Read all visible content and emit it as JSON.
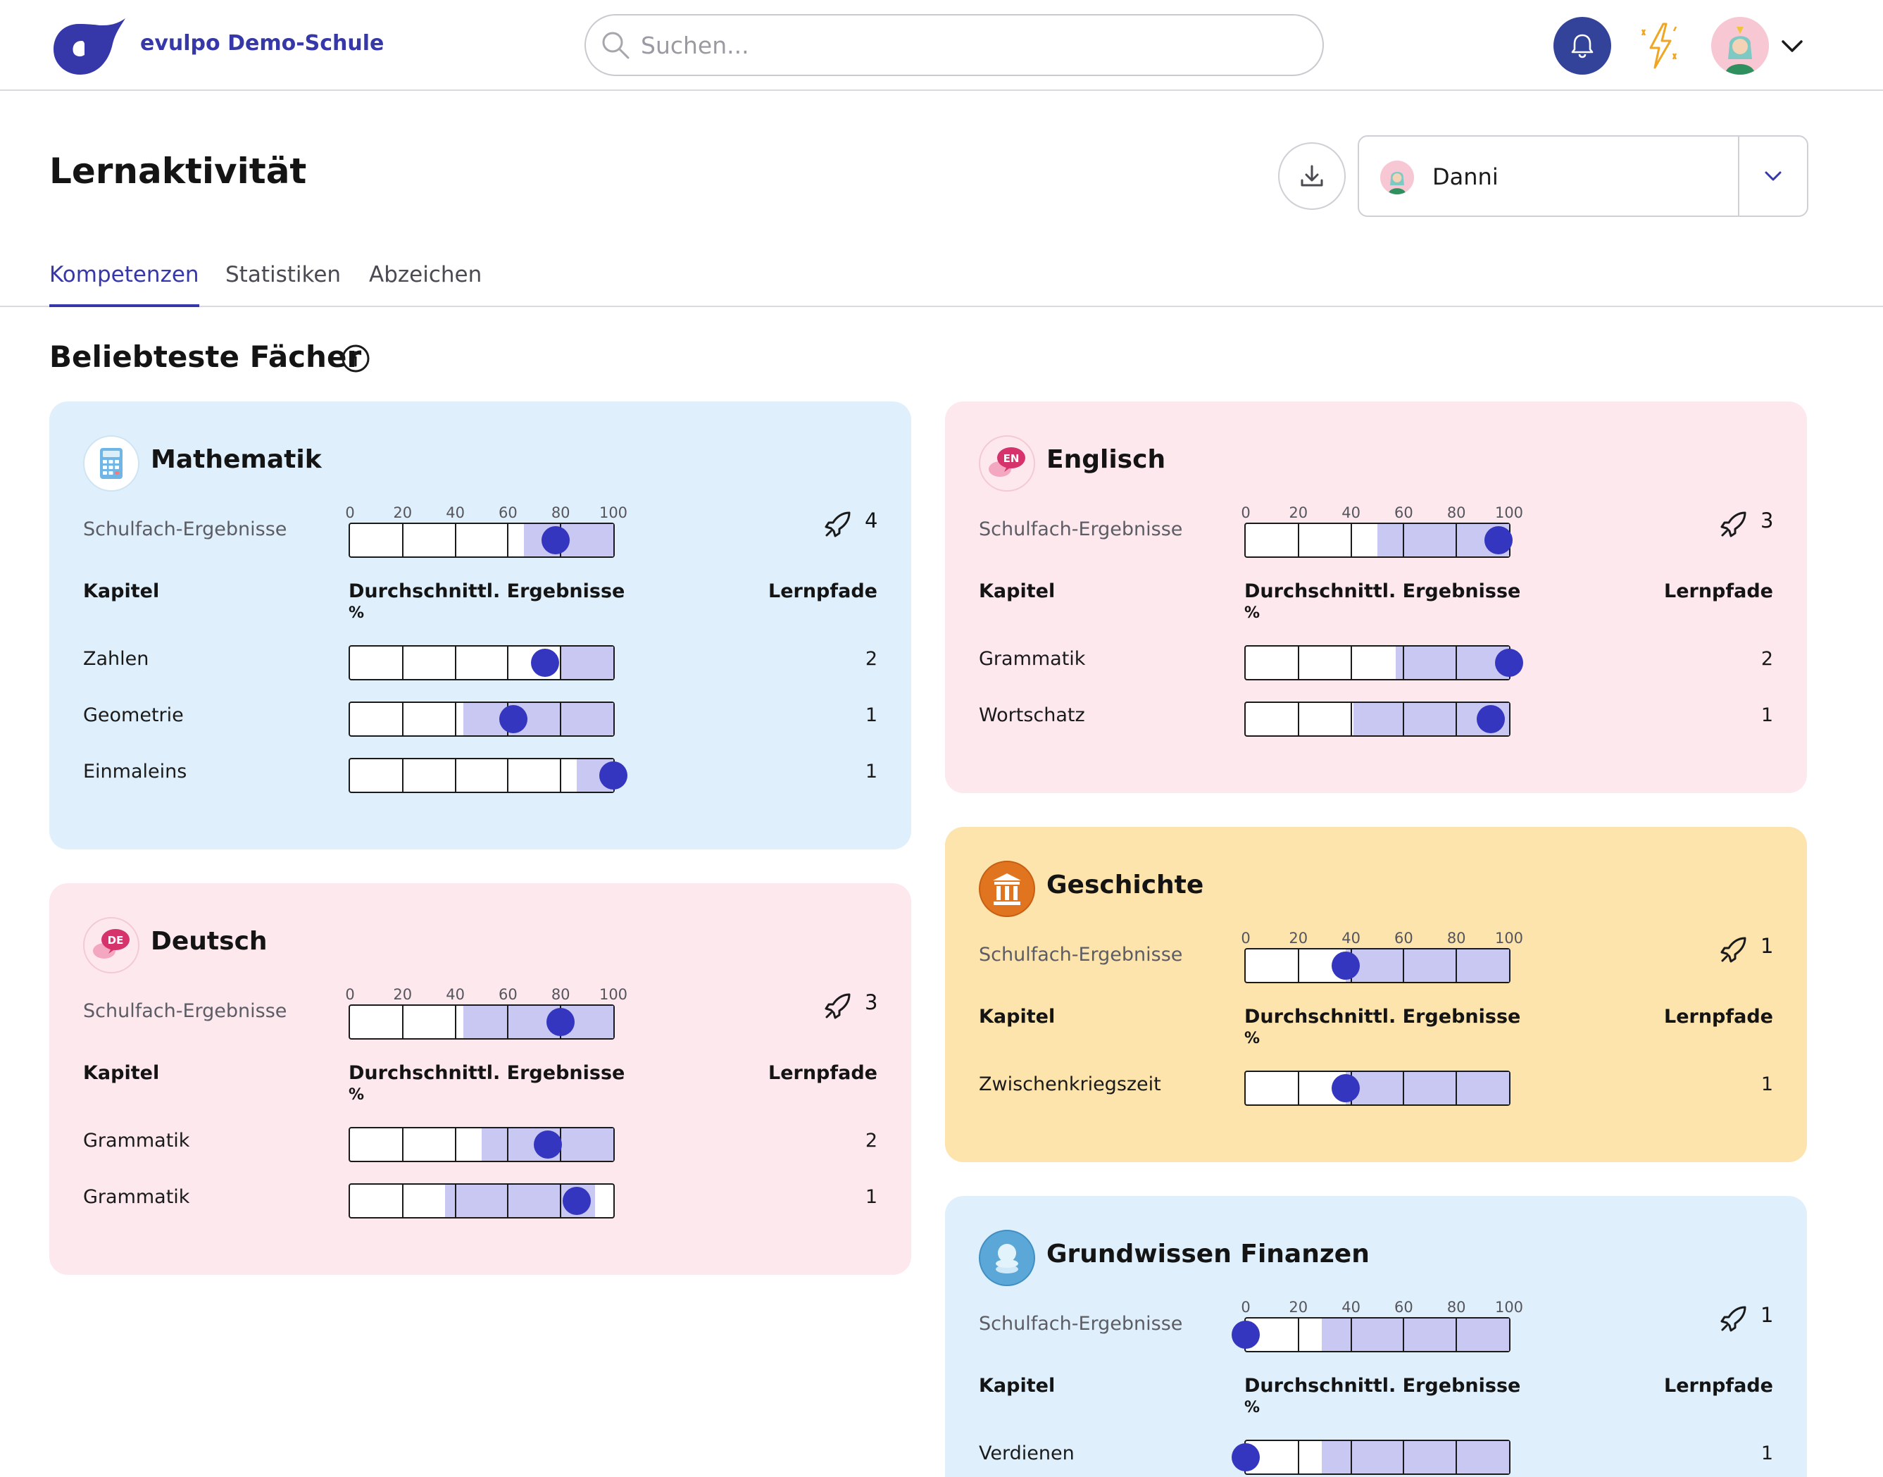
{
  "header": {
    "brand": "evulpo Demo-Schule",
    "search_placeholder": "Suchen..."
  },
  "page": {
    "title": "Lernaktivität",
    "user_name": "Danni",
    "tabs": [
      {
        "label": "Kompetenzen",
        "active": true
      },
      {
        "label": "Statistiken",
        "active": false
      },
      {
        "label": "Abzeichen",
        "active": false
      }
    ],
    "section_title": "Beliebteste Fächer"
  },
  "labels": {
    "results": "Schulfach-Ergebnisse",
    "chapter": "Kapitel",
    "avg": "Durchschnittl. Ergebnisse",
    "pct": "%",
    "paths": "Lernpfade",
    "ticks": [
      "0",
      "20",
      "40",
      "60",
      "80",
      "100"
    ]
  },
  "colors": {
    "brand": "#3638a9",
    "bell": "#33439a",
    "card_blue": "#dff0fc",
    "card_pink": "#fde8ee",
    "card_orange": "#fde3ac",
    "range_fill": "#c8c8f3",
    "marker": "#3436c0"
  },
  "subjects": [
    {
      "name": "Mathematik",
      "icon": "calculator-icon",
      "bg": "#dff0fc",
      "paths": "4",
      "result": {
        "min": 66,
        "max": 100,
        "value": 78
      },
      "chapters": [
        {
          "name": "Zahlen",
          "paths": "2",
          "min": 80,
          "max": 100,
          "value": 74
        },
        {
          "name": "Geometrie",
          "paths": "1",
          "min": 43,
          "max": 100,
          "value": 62
        },
        {
          "name": "Einmaleins",
          "paths": "1",
          "min": 86,
          "max": 100,
          "value": 100
        }
      ]
    },
    {
      "name": "Deutsch",
      "icon": "de-speech-icon",
      "bg": "#fde8ee",
      "paths": "3",
      "result": {
        "min": 43,
        "max": 100,
        "value": 80
      },
      "chapters": [
        {
          "name": "Grammatik",
          "paths": "2",
          "min": 50,
          "max": 100,
          "value": 75
        },
        {
          "name": "Grammatik",
          "paths": "1",
          "min": 36,
          "max": 93,
          "value": 86
        }
      ]
    },
    {
      "name": "Englisch",
      "icon": "en-speech-icon",
      "bg": "#fde8ee",
      "paths": "3",
      "result": {
        "min": 50,
        "max": 100,
        "value": 96
      },
      "chapters": [
        {
          "name": "Grammatik",
          "paths": "2",
          "min": 57,
          "max": 100,
          "value": 100
        },
        {
          "name": "Wortschatz",
          "paths": "1",
          "min": 41,
          "max": 100,
          "value": 93
        }
      ]
    },
    {
      "name": "Geschichte",
      "icon": "columns-icon",
      "bg": "#fde3ac",
      "paths": "1",
      "result": {
        "min": 38,
        "max": 100,
        "value": 38
      },
      "chapters": [
        {
          "name": "Zwischenkriegszeit",
          "paths": "1",
          "min": 38,
          "max": 100,
          "value": 38
        }
      ]
    },
    {
      "name": "Grundwissen Finanzen",
      "icon": "coins-icon",
      "bg": "#dff0fc",
      "paths": "1",
      "result": {
        "min": 29,
        "max": 100,
        "value": 0
      },
      "chapters": [
        {
          "name": "Verdienen",
          "paths": "1",
          "min": 29,
          "max": 100,
          "value": 0
        }
      ]
    }
  ]
}
